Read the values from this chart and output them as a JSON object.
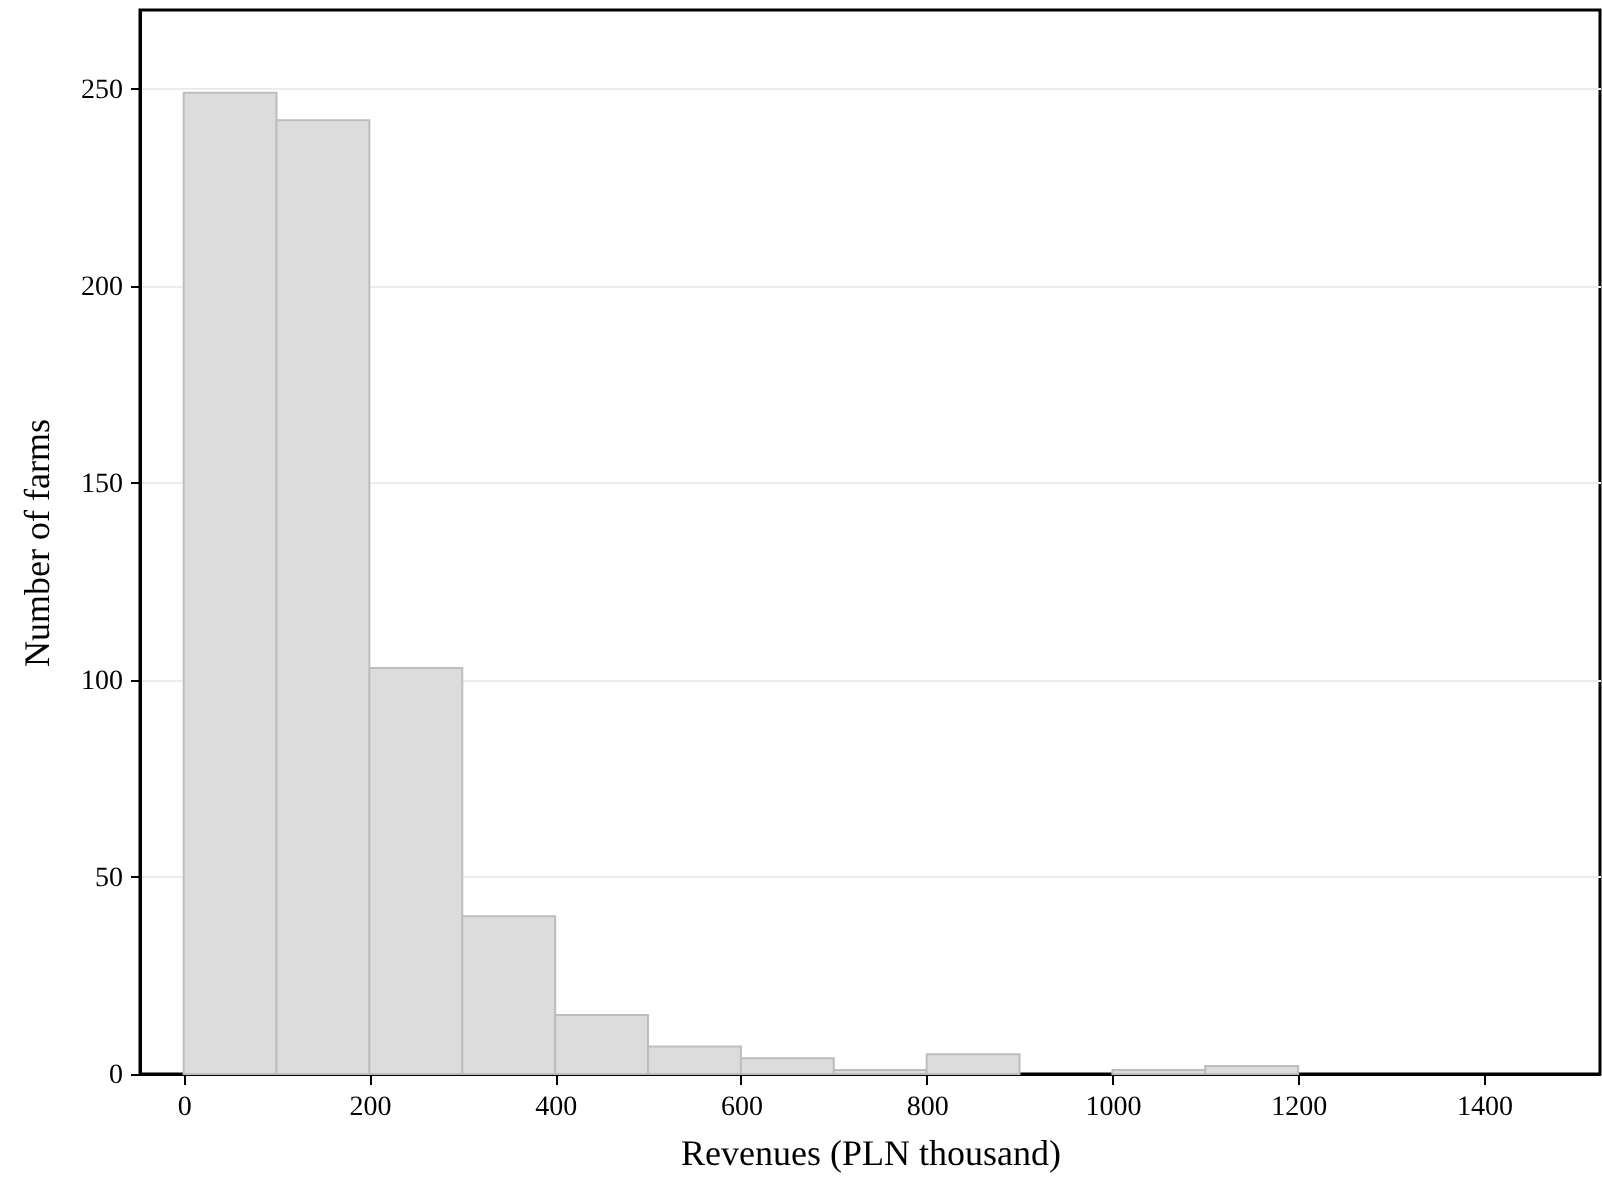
{
  "chart_data": {
    "type": "histogram",
    "xlabel": "Revenues (PLN thousand)",
    "ylabel": "Number of farms",
    "bins": [
      0,
      100,
      200,
      300,
      400,
      500,
      600,
      700,
      800,
      900,
      1000,
      1100,
      1200
    ],
    "values": [
      249,
      242,
      103,
      40,
      15,
      7,
      4,
      1,
      5,
      0,
      1,
      2
    ],
    "color": "#dcdcdc",
    "xlim": [
      -47,
      1525
    ],
    "xticks": [
      0,
      200,
      400,
      600,
      800,
      1000,
      1200,
      1400
    ],
    "ylim": [
      0,
      270
    ],
    "yticks": [
      0,
      50,
      100,
      150,
      200,
      250
    ],
    "grid": "y"
  }
}
